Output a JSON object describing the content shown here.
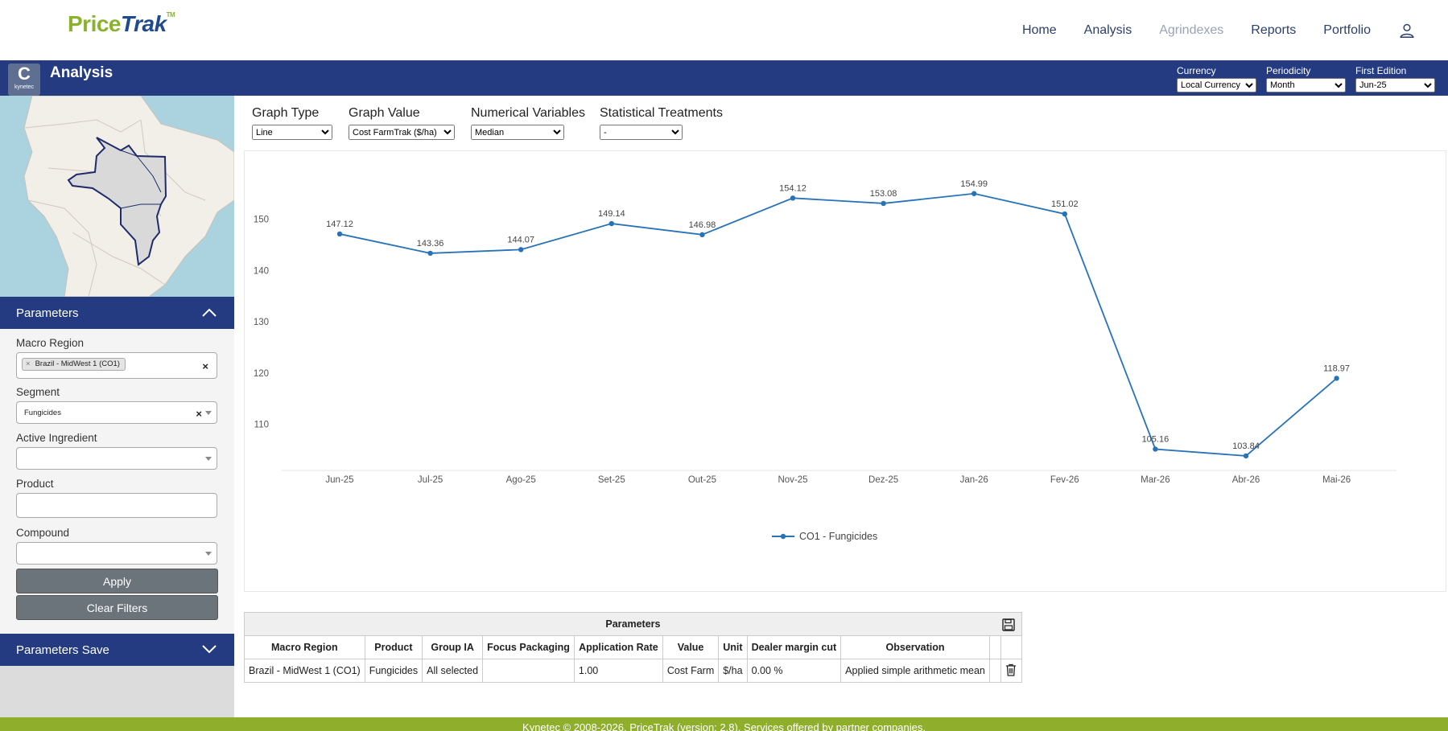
{
  "brand": {
    "name_part1": "Price",
    "name_part2": "Trak",
    "tm": "TM"
  },
  "nav": {
    "items": [
      "Home",
      "Analysis",
      "Agrindexes",
      "Reports",
      "Portfolio"
    ]
  },
  "header": {
    "badge_letter": "C",
    "badge_text": "kynetec",
    "title": "Analysis",
    "currency": {
      "label": "Currency",
      "value": "Local Currency"
    },
    "periodicity": {
      "label": "Periodicity",
      "value": "Month"
    },
    "first_edition": {
      "label": "First Edition",
      "value": "Jun-25"
    }
  },
  "sidebar": {
    "parameters_title": "Parameters",
    "macro_region": {
      "label": "Macro Region",
      "chip": "Brazil - MidWest 1 (CO1)",
      "chip_remove": "×",
      "clear": "×"
    },
    "segment": {
      "label": "Segment",
      "value": "Fungicides",
      "clear": "×"
    },
    "active_ingredient": {
      "label": "Active Ingredient",
      "value": ""
    },
    "product": {
      "label": "Product",
      "value": ""
    },
    "compound": {
      "label": "Compound",
      "value": ""
    },
    "apply_label": "Apply",
    "clear_filters_label": "Clear Filters",
    "save_title": "Parameters Save"
  },
  "controls": {
    "graph_type": {
      "label": "Graph Type",
      "value": "Line"
    },
    "graph_value": {
      "label": "Graph Value",
      "value": "Cost FarmTrak ($/ha)"
    },
    "numerical_variables": {
      "label": "Numerical Variables",
      "value": "Median"
    },
    "statistical_treatments": {
      "label": "Statistical Treatments",
      "value": "-"
    }
  },
  "chart_data": {
    "type": "line",
    "title": "",
    "xlabel": "",
    "ylabel": "",
    "categories": [
      "Jun-25",
      "Jul-25",
      "Ago-25",
      "Set-25",
      "Out-25",
      "Nov-25",
      "Dez-25",
      "Jan-26",
      "Fev-26",
      "Mar-26",
      "Abr-26",
      "Mai-26"
    ],
    "series": [
      {
        "name": "CO1 - Fungicides",
        "values": [
          147.12,
          143.36,
          144.07,
          149.14,
          146.98,
          154.12,
          153.08,
          154.99,
          151.02,
          105.16,
          103.84,
          118.97
        ]
      }
    ],
    "yticks": [
      110,
      120,
      130,
      140,
      150
    ],
    "ylim": [
      101,
      159.5
    ],
    "grid": false,
    "legend": "bottom-center",
    "colors": {
      "line": "#2873b8"
    }
  },
  "table": {
    "caption": "Parameters",
    "headers": [
      "Macro Region",
      "Product",
      "Group IA",
      "Focus Packaging",
      "Application Rate",
      "Value",
      "Unit",
      "Dealer margin cut",
      "Observation"
    ],
    "rows": [
      [
        "Brazil - MidWest 1 (CO1)",
        "Fungicides",
        "All selected",
        "",
        "1.00",
        "Cost Farm",
        "$/ha",
        "0.00 %",
        "Applied simple arithmetic mean"
      ]
    ]
  },
  "footer": {
    "text": "Kynetec © 2008-2026. PriceTrak (version: 2.8). Services offered by partner companies."
  },
  "colors": {
    "primary_blue": "#243b82",
    "brand_green": "#8ab22c",
    "footer_green": "#8fae2b",
    "button_gray": "#6b737b"
  }
}
